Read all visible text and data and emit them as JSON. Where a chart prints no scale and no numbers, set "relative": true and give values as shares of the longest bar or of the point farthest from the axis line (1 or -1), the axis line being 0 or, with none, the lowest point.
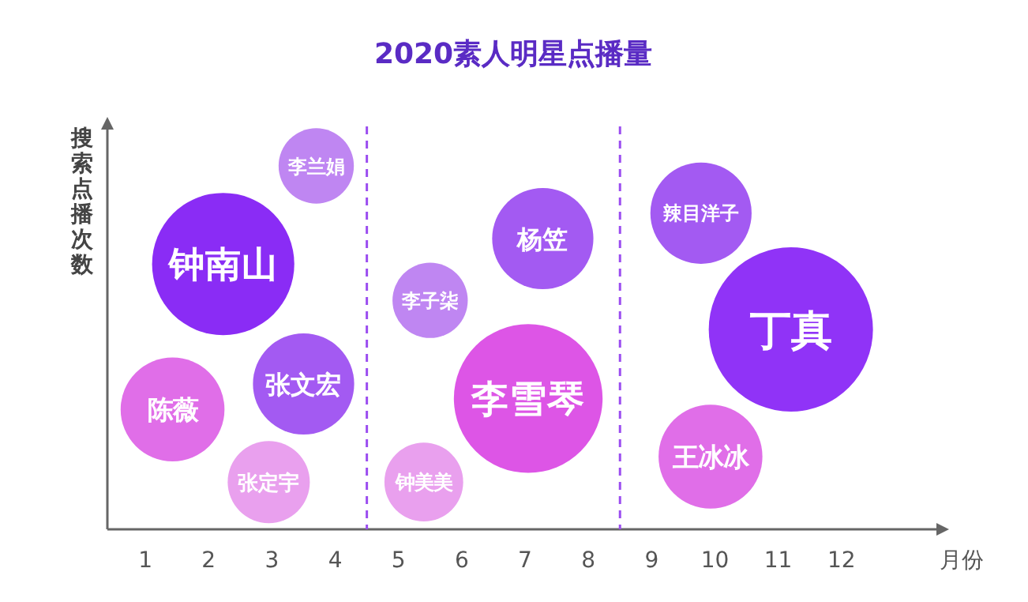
{
  "chart_data": {
    "type": "bubble",
    "title": "2020素人明星点播量",
    "xlabel": "月份",
    "ylabel": "搜索点播次数",
    "relative": true,
    "xlim": [
      0.4,
      13.5
    ],
    "xticks": [
      1,
      2,
      3,
      4,
      5,
      6,
      7,
      8,
      9,
      10,
      11,
      12
    ],
    "ref_lines": [
      {
        "axis": "x",
        "value": 4.5,
        "color": "#9b4df0",
        "line_style": "dashed"
      },
      {
        "axis": "x",
        "value": 8.5,
        "color": "#9b4df0",
        "line_style": "dashed"
      }
    ],
    "x": [
      3.7,
      2.23,
      1.43,
      3.5,
      2.95,
      5.5,
      5.4,
      7.28,
      7.05,
      9.78,
      11.2,
      9.93
    ],
    "values": [
      1,
      0.73,
      0.33,
      0.4,
      0.13,
      0.63,
      0.13,
      0.8,
      0.36,
      0.87,
      0.55,
      0.2
    ],
    "sizes": [
      0.21,
      0.75,
      0.4,
      0.38,
      0.25,
      0.21,
      0.23,
      0.38,
      0.82,
      0.38,
      1,
      0.4
    ],
    "colors": [
      "#bf86f2",
      "#8a2cf5",
      "#e06ee8",
      "#a35af2",
      "#e9a0ee",
      "#bf86f2",
      "#e9a0ee",
      "#a35af2",
      "#dd55e6",
      "#a35af2",
      "#9033f7",
      "#e06ee8"
    ],
    "annotations": [
      {
        "text": "李兰娟",
        "x": 3.7,
        "y": 1
      },
      {
        "text": "钟南山",
        "x": 2.23,
        "y": 0.73
      },
      {
        "text": "陈薇",
        "x": 1.43,
        "y": 0.33
      },
      {
        "text": "张文宏",
        "x": 3.5,
        "y": 0.4
      },
      {
        "text": "张定宇",
        "x": 2.95,
        "y": 0.13
      },
      {
        "text": "李子柒",
        "x": 5.5,
        "y": 0.63
      },
      {
        "text": "钟美美",
        "x": 5.4,
        "y": 0.13
      },
      {
        "text": "杨笠",
        "x": 7.28,
        "y": 0.8
      },
      {
        "text": "李雪琴",
        "x": 7.05,
        "y": 0.36
      },
      {
        "text": "辣目洋子",
        "x": 9.78,
        "y": 0.87
      },
      {
        "text": "丁真",
        "x": 11.2,
        "y": 0.55
      },
      {
        "text": "王冰冰",
        "x": 9.93,
        "y": 0.2
      }
    ]
  }
}
